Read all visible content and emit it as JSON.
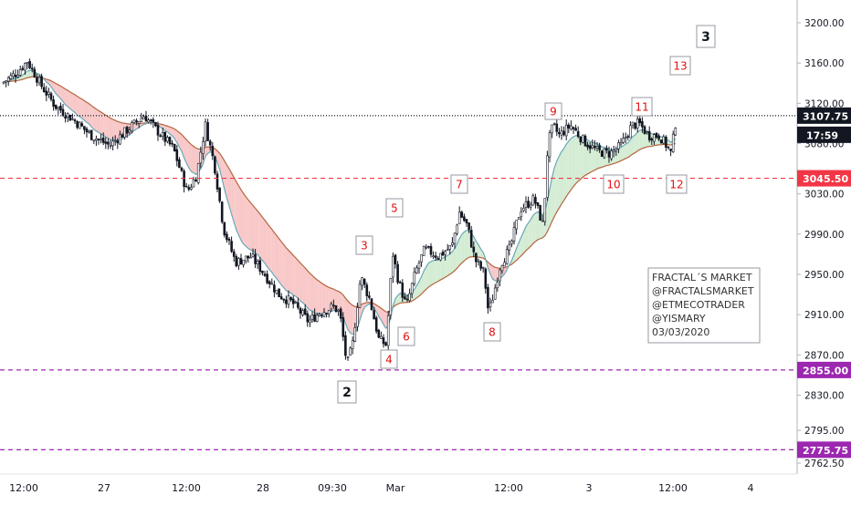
{
  "chart_data": {
    "type": "candlestick",
    "y_ticks": [
      3200,
      3160,
      3120,
      3080,
      3030,
      2990,
      2950,
      2910,
      2870,
      2830,
      2795,
      2762.5
    ],
    "y_tick_labels": [
      "3200.00",
      "3160.00",
      "3120.00",
      "3080.00",
      "3030.00",
      "2990.00",
      "2950.00",
      "2910.00",
      "2870.00",
      "2830.00",
      "2795.00",
      "2762.50"
    ],
    "ylim": [
      2757,
      3225
    ],
    "x_tick_labels": [
      "12:00",
      "27",
      "12:00",
      "28",
      "09:30",
      "Mar",
      "12:00",
      "3",
      "12:00",
      "4"
    ],
    "price_labels": [
      {
        "value": 3107.75,
        "text": "3107.75",
        "color": "#131722",
        "line": "dotted"
      },
      {
        "value": 3045.5,
        "text": "3045.50",
        "color": "#f23645",
        "line": "dashed"
      },
      {
        "value": 2855.0,
        "text": "2855.00",
        "color": "#9c27b0",
        "line": "dashed"
      },
      {
        "value": 2775.75,
        "text": "2775.75",
        "color": "#9c27b0",
        "line": "dashed"
      }
    ],
    "countdown": "17:59",
    "wave_labels": [
      {
        "text": "2",
        "color": "#131722"
      },
      {
        "text": "3",
        "color": "#131722"
      },
      {
        "text": "3",
        "color": "#e01010"
      },
      {
        "text": "4",
        "color": "#e01010"
      },
      {
        "text": "5",
        "color": "#e01010"
      },
      {
        "text": "6",
        "color": "#e01010"
      },
      {
        "text": "7",
        "color": "#e01010"
      },
      {
        "text": "8",
        "color": "#e01010"
      },
      {
        "text": "9",
        "color": "#e01010"
      },
      {
        "text": "10",
        "color": "#e01010"
      },
      {
        "text": "11",
        "color": "#e01010"
      },
      {
        "text": "12",
        "color": "#e01010"
      },
      {
        "text": "13",
        "color": "#e01010"
      }
    ],
    "annotation": [
      "FRACTAL´S MARKET",
      "@FRACTALSMARKET",
      "@ETMECOTRADER",
      "@YISMARY",
      "03/03/2020"
    ],
    "colors": {
      "ribbon_bearish": "#f8c8c8",
      "ribbon_bullish": "#d4ecd4",
      "slow_ma": "#b5653e",
      "fast_ma": "#6aa8b8",
      "candles": "#131722"
    }
  }
}
